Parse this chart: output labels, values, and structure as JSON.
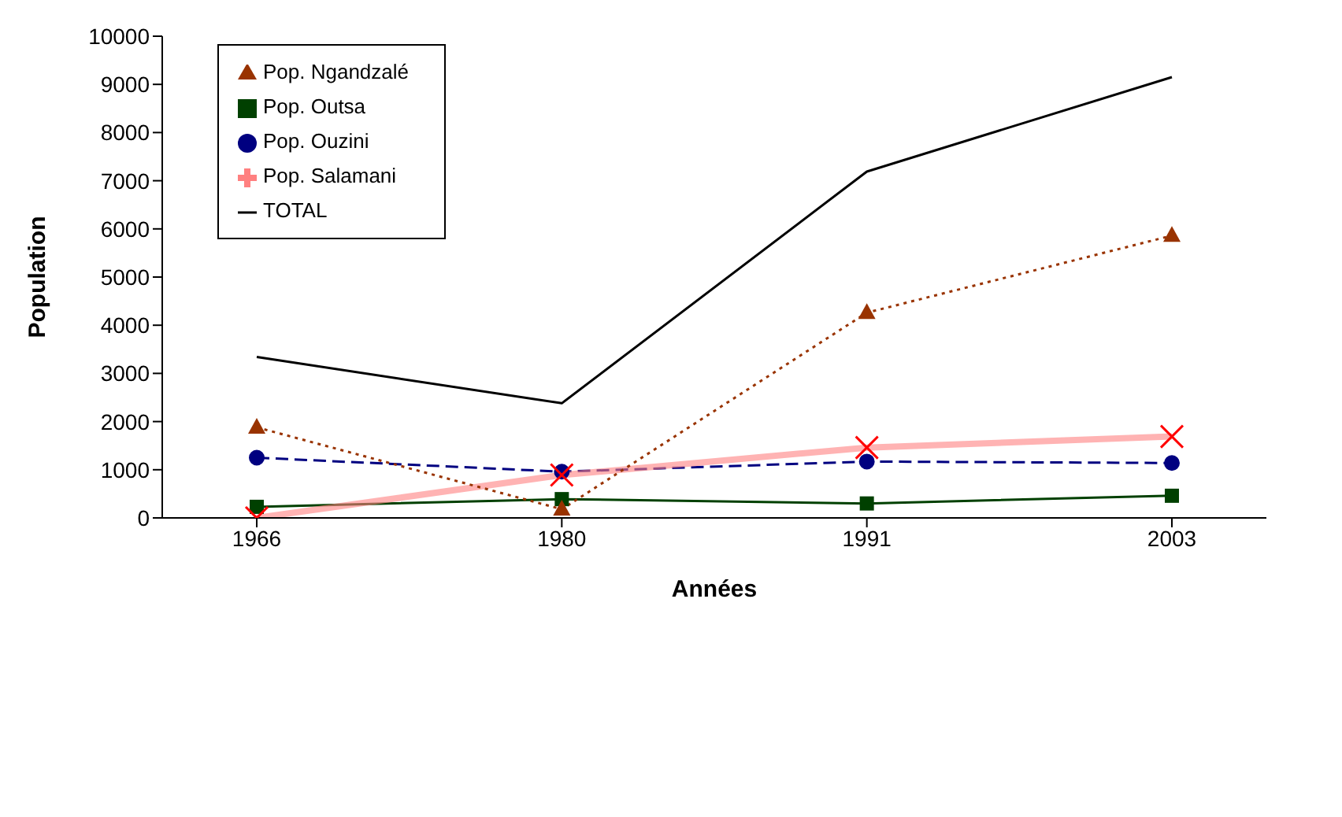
{
  "chart_data": {
    "type": "line",
    "xlabel": "Années",
    "ylabel": "Population",
    "categories": [
      "1966",
      "1980",
      "1991",
      "2003"
    ],
    "ylim": [
      0,
      10000
    ],
    "yticks": [
      0,
      1000,
      2000,
      3000,
      4000,
      5000,
      6000,
      7000,
      8000,
      9000,
      10000
    ],
    "grid": false,
    "legend": "top left",
    "series": [
      {
        "name": "Pop. Ouzini",
        "color": "#000080",
        "values": [
          1250,
          960,
          1170,
          1140
        ],
        "marker": "circle",
        "line_style": "dashed"
      },
      {
        "name": "Pop. Outsa",
        "color": "#004000",
        "values": [
          230,
          390,
          300,
          460
        ],
        "marker": "square",
        "line_style": "solid"
      },
      {
        "name": "Pop. Salamani",
        "color": "#ff8080",
        "values": [
          0,
          890,
          1460,
          1690
        ],
        "marker": "cross",
        "line_style": "solid"
      },
      {
        "name": "Pop. Ngandzalé",
        "color": "#993300",
        "values": [
          1880,
          180,
          4260,
          5860
        ],
        "marker": "triangle",
        "line_style": "dotted"
      },
      {
        "name": "TOTAL",
        "color": "#000000",
        "values": [
          3340,
          2380,
          7190,
          9150
        ],
        "marker": "none",
        "line_style": "solid"
      }
    ]
  }
}
